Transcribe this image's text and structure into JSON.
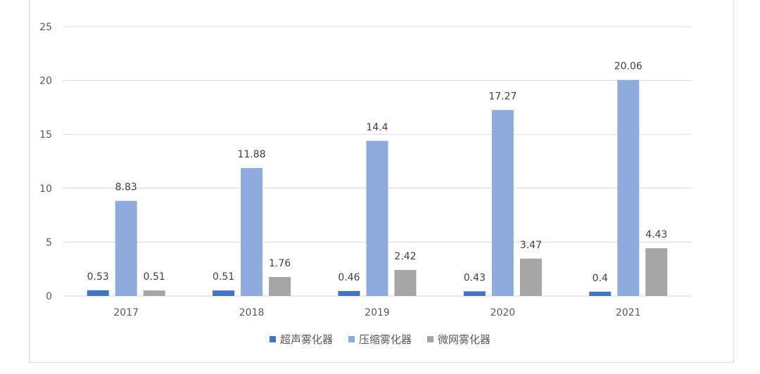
{
  "chart_data": {
    "type": "bar",
    "categories": [
      "2017",
      "2018",
      "2019",
      "2020",
      "2021"
    ],
    "series": [
      {
        "name": "超声雾化器",
        "values": [
          0.53,
          0.51,
          0.46,
          0.43,
          0.4
        ],
        "color": "#4472C4"
      },
      {
        "name": "压缩雾化器",
        "values": [
          8.83,
          11.88,
          14.4,
          17.27,
          20.06
        ],
        "color": "#8FAADC"
      },
      {
        "name": "微网雾化器",
        "values": [
          0.51,
          1.76,
          2.42,
          3.47,
          4.43
        ],
        "color": "#A5A5A5"
      }
    ],
    "ylim": [
      0,
      25
    ],
    "yticks": [
      0,
      5,
      10,
      15,
      20,
      25
    ],
    "grid": true,
    "legend_position": "bottom"
  }
}
